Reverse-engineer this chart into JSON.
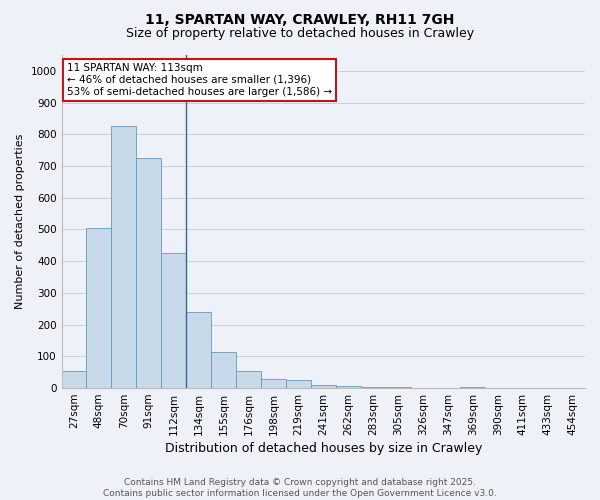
{
  "title_line1": "11, SPARTAN WAY, CRAWLEY, RH11 7GH",
  "title_line2": "Size of property relative to detached houses in Crawley",
  "xlabel": "Distribution of detached houses by size in Crawley",
  "ylabel": "Number of detached properties",
  "annotation_title": "11 SPARTAN WAY: 113sqm",
  "annotation_line2": "← 46% of detached houses are smaller (1,396)",
  "annotation_line3": "53% of semi-detached houses are larger (1,586) →",
  "footer_line1": "Contains HM Land Registry data © Crown copyright and database right 2025.",
  "footer_line2": "Contains public sector information licensed under the Open Government Licence v3.0.",
  "bar_labels": [
    "27sqm",
    "48sqm",
    "70sqm",
    "91sqm",
    "112sqm",
    "134sqm",
    "155sqm",
    "176sqm",
    "198sqm",
    "219sqm",
    "241sqm",
    "262sqm",
    "283sqm",
    "305sqm",
    "326sqm",
    "347sqm",
    "369sqm",
    "390sqm",
    "411sqm",
    "433sqm",
    "454sqm"
  ],
  "bar_values": [
    55,
    505,
    825,
    725,
    425,
    240,
    115,
    55,
    30,
    25,
    10,
    5,
    3,
    2,
    0,
    0,
    2,
    0,
    0,
    0,
    0
  ],
  "bar_color": "#c8daea",
  "bar_edge_color": "#6699bb",
  "highlight_index": 4,
  "vline_color": "#336699",
  "ylim": [
    0,
    1050
  ],
  "yticks": [
    0,
    100,
    200,
    300,
    400,
    500,
    600,
    700,
    800,
    900,
    1000
  ],
  "bg_color": "#eef2f8",
  "plot_bg_color": "#eef2f8",
  "grid_color": "#c5d3e0",
  "annotation_box_facecolor": "#ffffff",
  "annotation_box_edgecolor": "#cc1111",
  "title1_fontsize": 10,
  "title2_fontsize": 9,
  "ylabel_fontsize": 8,
  "xlabel_fontsize": 9,
  "tick_fontsize": 7.5,
  "ann_fontsize": 7.5,
  "footer_fontsize": 6.5
}
